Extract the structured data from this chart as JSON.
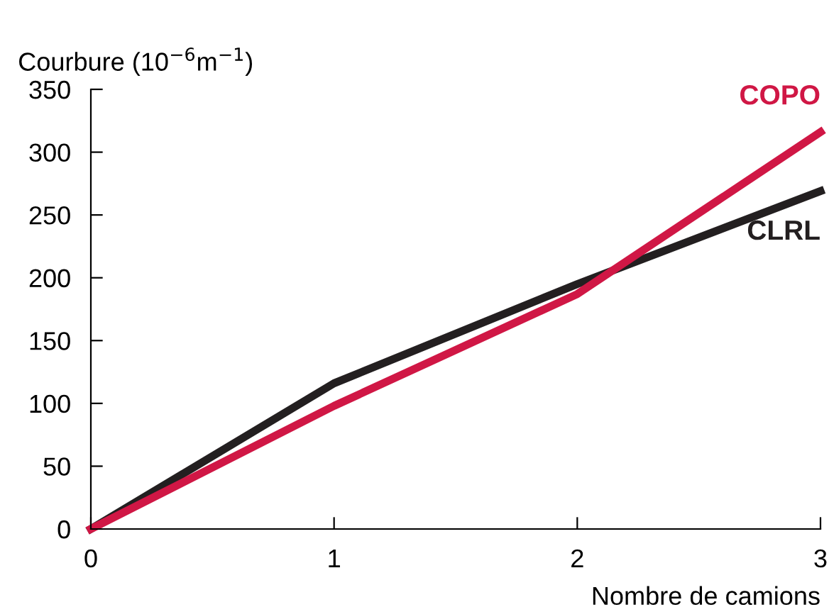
{
  "chart_data": {
    "type": "line",
    "ylabel": "Courbure (10$^{−6}$m$^{−1}$)",
    "xlabel": "Nombre de camions",
    "x": [
      0,
      1,
      2,
      3
    ],
    "series": [
      {
        "name": "CLRL",
        "color": "#231f20",
        "values": [
          0,
          116,
          195,
          269
        ]
      },
      {
        "name": "COPO",
        "color": "#d01745",
        "values": [
          0,
          98,
          187,
          316
        ]
      }
    ],
    "xlim": [
      0,
      3
    ],
    "xticks": [
      0,
      1,
      2,
      3
    ],
    "ylim": [
      0,
      350
    ],
    "yticks": [
      0,
      50,
      100,
      150,
      200,
      250,
      300,
      350
    ],
    "grid": false,
    "legend": false,
    "marker": "none",
    "line_style": "solid"
  }
}
